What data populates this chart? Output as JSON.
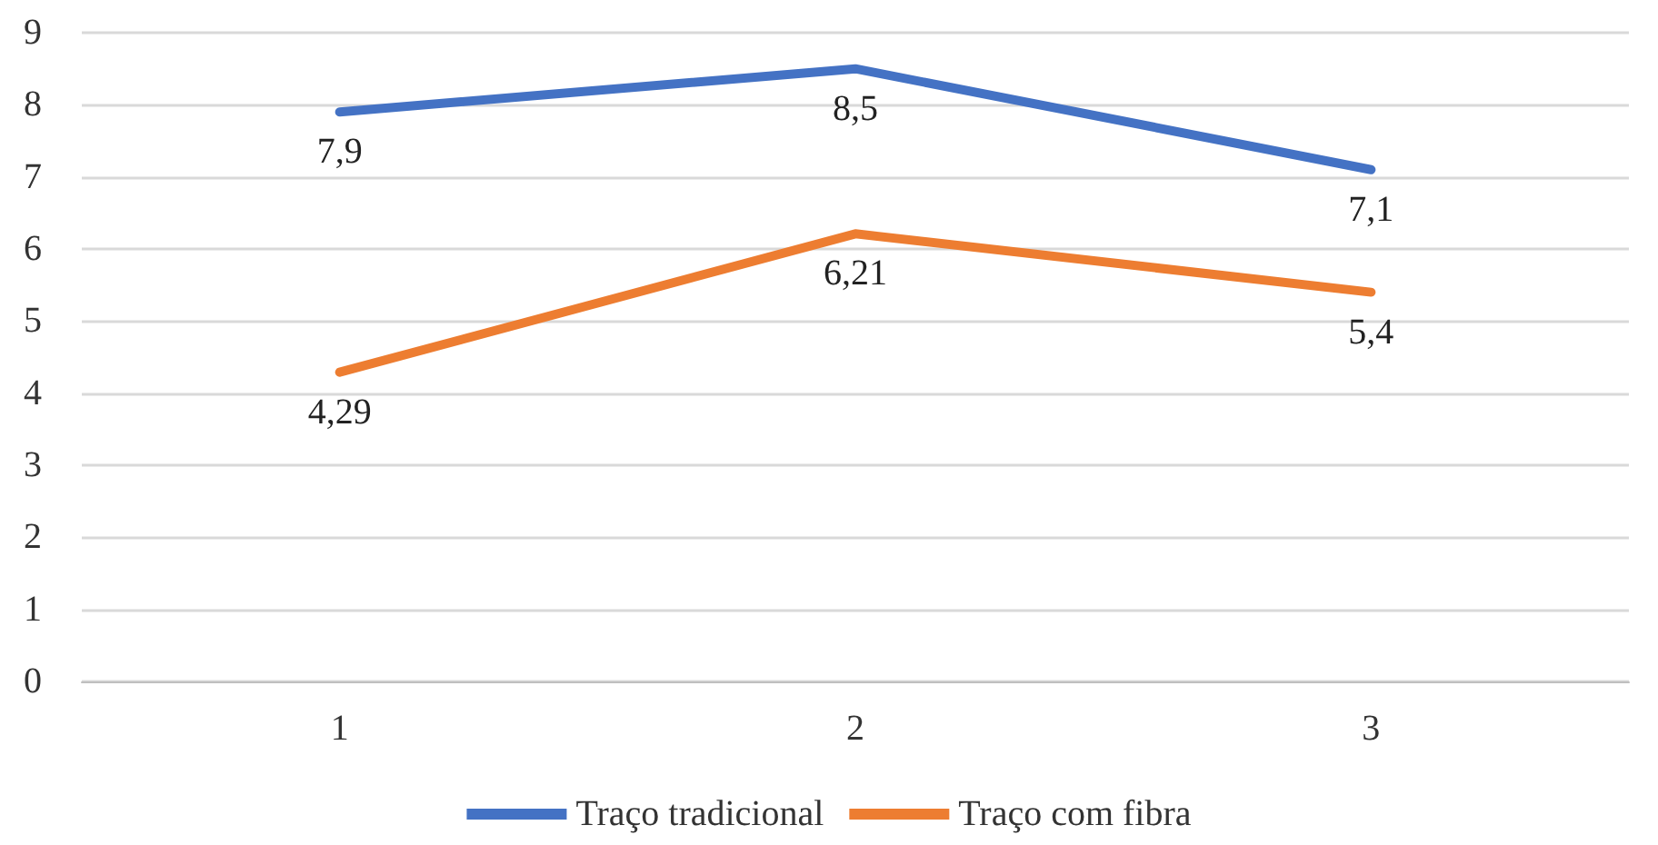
{
  "chart_data": {
    "type": "line",
    "categories": [
      "1",
      "2",
      "3"
    ],
    "series": [
      {
        "name": "Traço tradicional",
        "color": "#4472c4",
        "values": [
          7.9,
          8.5,
          7.1
        ],
        "value_labels": [
          "7,9",
          "8,5",
          "7,1"
        ]
      },
      {
        "name": "Traço com fibra",
        "color": "#ed7d31",
        "values": [
          4.29,
          6.21,
          5.4
        ],
        "value_labels": [
          "4,29",
          "6,21",
          "5,4"
        ]
      }
    ],
    "ylim": [
      0,
      9
    ],
    "yticks": [
      0,
      1,
      2,
      3,
      4,
      5,
      6,
      7,
      8,
      9
    ],
    "grid": "y",
    "legend": "bottom",
    "marker": "none",
    "line_style": "solid"
  }
}
